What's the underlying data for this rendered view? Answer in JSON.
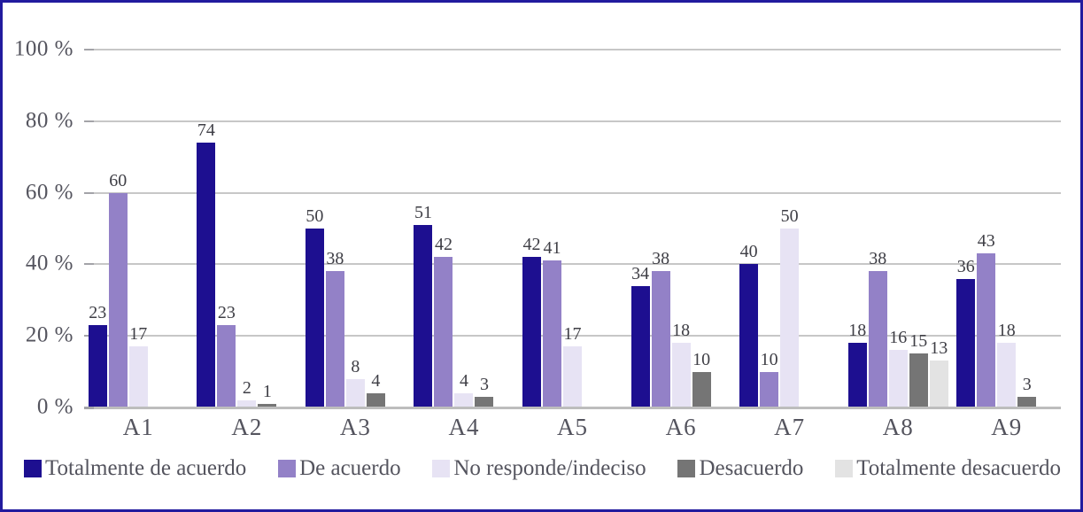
{
  "chart_data": {
    "type": "bar",
    "title": "",
    "xlabel": "",
    "ylabel": "",
    "categories": [
      "A1",
      "A2",
      "A3",
      "A4",
      "A5",
      "A6",
      "A7",
      "A8",
      "A9"
    ],
    "series": [
      {
        "name": "Totalmente de acuerdo",
        "color": "#1d0f90",
        "values": [
          23,
          74,
          50,
          51,
          42,
          34,
          40,
          18,
          36
        ]
      },
      {
        "name": "De acuerdo",
        "color": "#9381c7",
        "values": [
          60,
          23,
          38,
          42,
          41,
          38,
          10,
          38,
          43
        ]
      },
      {
        "name": "No responde/indeciso",
        "color": "#e7e3f4",
        "values": [
          17,
          2,
          8,
          4,
          17,
          18,
          50,
          16,
          18
        ]
      },
      {
        "name": "Desacuerdo",
        "color": "#757575",
        "values": [
          0,
          1,
          4,
          3,
          0,
          10,
          0,
          15,
          3
        ]
      },
      {
        "name": "Totalmente desacuerdo",
        "color": "#e3e3e3",
        "values": [
          0,
          0,
          0,
          0,
          0,
          0,
          0,
          13,
          0
        ]
      }
    ],
    "y_ticks": [
      {
        "label": "100 %",
        "value": 100
      },
      {
        "label": "80 %",
        "value": 80
      },
      {
        "label": "60 %",
        "value": 60
      },
      {
        "label": "40 %",
        "value": 40
      },
      {
        "label": "20 %",
        "value": 20
      },
      {
        "label": "0 %",
        "value": 0
      }
    ],
    "ylim": [
      0,
      100
    ],
    "grid": true,
    "value_labels": true,
    "legend_position": "bottom"
  },
  "colors": {
    "frame_border": "#221b9e",
    "gridline": "#c7c7c7",
    "baseline": "#bdbdbd",
    "axis_text": "#54545e",
    "value_text": "#3e3e45",
    "background": "#ffffff"
  }
}
